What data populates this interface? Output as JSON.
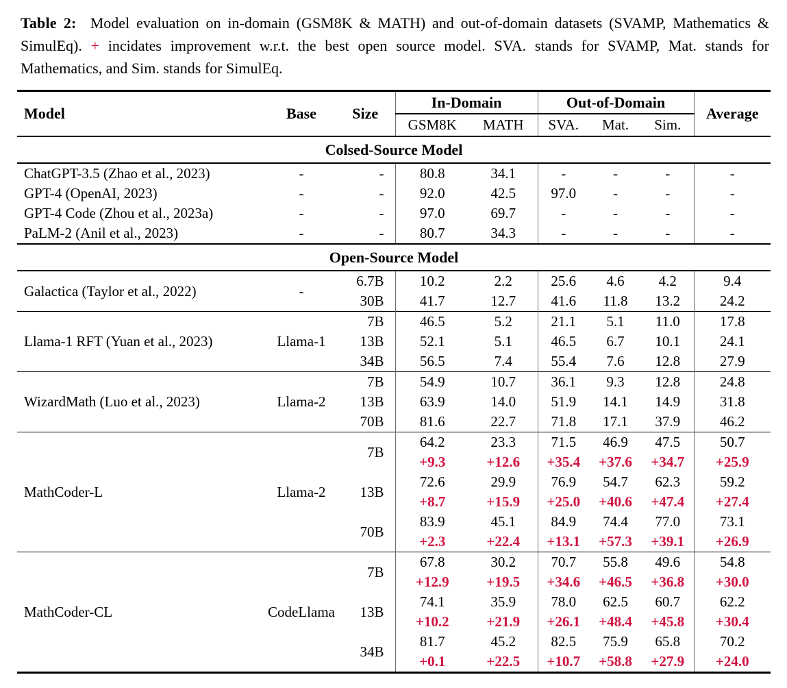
{
  "caption": {
    "label": "Table 2:",
    "before_plus": "Model evaluation on in-domain (GSM8K & MATH) and out-of-domain datasets (SVAMP, Mathematics & SimulEq). ",
    "plus": "+",
    "after_plus": " incidates improvement w.r.t. the best open source model. SVA. stands for SVAMP, Mat. stands for Mathematics, and Sim. stands for SimulEq."
  },
  "colors": {
    "accent_red": "#d2113f",
    "text": "#000000",
    "background": "#ffffff"
  },
  "table": {
    "header": {
      "model": "Model",
      "base": "Base",
      "size": "Size",
      "in_domain": "In-Domain",
      "out_domain": "Out-of-Domain",
      "average": "Average",
      "sub_columns": [
        "GSM8K",
        "MATH",
        "SVA.",
        "Mat.",
        "Sim."
      ]
    },
    "sections": [
      {
        "title": "Colsed-Source Model",
        "groups": [
          {
            "model": "ChatGPT-3.5 (Zhao et al., 2023)",
            "base": "-",
            "rows": [
              {
                "size": "-",
                "values": [
                  "80.8",
                  "34.1",
                  "-",
                  "-",
                  "-",
                  "-"
                ]
              }
            ]
          },
          {
            "model": "GPT-4 (OpenAI, 2023)",
            "base": "-",
            "rows": [
              {
                "size": "-",
                "values": [
                  "92.0",
                  "42.5",
                  "97.0",
                  "-",
                  "-",
                  "-"
                ]
              }
            ]
          },
          {
            "model": "GPT-4 Code (Zhou et al., 2023a)",
            "base": "-",
            "rows": [
              {
                "size": "-",
                "values": [
                  "97.0",
                  "69.7",
                  "-",
                  "-",
                  "-",
                  "-"
                ]
              }
            ]
          },
          {
            "model": "PaLM-2 (Anil et al., 2023)",
            "base": "-",
            "rows": [
              {
                "size": "-",
                "values": [
                  "80.7",
                  "34.3",
                  "-",
                  "-",
                  "-",
                  "-"
                ]
              }
            ]
          }
        ]
      },
      {
        "title": "Open-Source Model",
        "groups": [
          {
            "model": "Galactica (Taylor et al., 2022)",
            "base": "-",
            "rows": [
              {
                "size": "6.7B",
                "values": [
                  "10.2",
                  "2.2",
                  "25.6",
                  "4.6",
                  "4.2",
                  "9.4"
                ]
              },
              {
                "size": "30B",
                "values": [
                  "41.7",
                  "12.7",
                  "41.6",
                  "11.8",
                  "13.2",
                  "24.2"
                ]
              }
            ]
          },
          {
            "model": "Llama-1 RFT (Yuan et al., 2023)",
            "base": "Llama-1",
            "rows": [
              {
                "size": "7B",
                "values": [
                  "46.5",
                  "5.2",
                  "21.1",
                  "5.1",
                  "11.0",
                  "17.8"
                ]
              },
              {
                "size": "13B",
                "values": [
                  "52.1",
                  "5.1",
                  "46.5",
                  "6.7",
                  "10.1",
                  "24.1"
                ]
              },
              {
                "size": "34B",
                "values": [
                  "56.5",
                  "7.4",
                  "55.4",
                  "7.6",
                  "12.8",
                  "27.9"
                ]
              }
            ]
          },
          {
            "model": "WizardMath (Luo et al., 2023)",
            "base": "Llama-2",
            "rows": [
              {
                "size": "7B",
                "values": [
                  "54.9",
                  "10.7",
                  "36.1",
                  "9.3",
                  "12.8",
                  "24.8"
                ]
              },
              {
                "size": "13B",
                "values": [
                  "63.9",
                  "14.0",
                  "51.9",
                  "14.1",
                  "14.9",
                  "31.8"
                ]
              },
              {
                "size": "70B",
                "values": [
                  "81.6",
                  "22.7",
                  "71.8",
                  "17.1",
                  "37.9",
                  "46.2"
                ]
              }
            ]
          },
          {
            "model": "MathCoder-L",
            "base": "Llama-2",
            "rows": [
              {
                "size": "7B",
                "values": [
                  "64.2",
                  "23.3",
                  "71.5",
                  "46.9",
                  "47.5",
                  "50.7"
                ],
                "deltas": [
                  "+9.3",
                  "+12.6",
                  "+35.4",
                  "+37.6",
                  "+34.7",
                  "+25.9"
                ]
              },
              {
                "size": "13B",
                "values": [
                  "72.6",
                  "29.9",
                  "76.9",
                  "54.7",
                  "62.3",
                  "59.2"
                ],
                "deltas": [
                  "+8.7",
                  "+15.9",
                  "+25.0",
                  "+40.6",
                  "+47.4",
                  "+27.4"
                ]
              },
              {
                "size": "70B",
                "values": [
                  "83.9",
                  "45.1",
                  "84.9",
                  "74.4",
                  "77.0",
                  "73.1"
                ],
                "deltas": [
                  "+2.3",
                  "+22.4",
                  "+13.1",
                  "+57.3",
                  "+39.1",
                  "+26.9"
                ]
              }
            ]
          },
          {
            "model": "MathCoder-CL",
            "base": "CodeLlama",
            "rows": [
              {
                "size": "7B",
                "values": [
                  "67.8",
                  "30.2",
                  "70.7",
                  "55.8",
                  "49.6",
                  "54.8"
                ],
                "deltas": [
                  "+12.9",
                  "+19.5",
                  "+34.6",
                  "+46.5",
                  "+36.8",
                  "+30.0"
                ]
              },
              {
                "size": "13B",
                "values": [
                  "74.1",
                  "35.9",
                  "78.0",
                  "62.5",
                  "60.7",
                  "62.2"
                ],
                "deltas": [
                  "+10.2",
                  "+21.9",
                  "+26.1",
                  "+48.4",
                  "+45.8",
                  "+30.4"
                ]
              },
              {
                "size": "34B",
                "values": [
                  "81.7",
                  "45.2",
                  "82.5",
                  "75.9",
                  "65.8",
                  "70.2"
                ],
                "deltas": [
                  "+0.1",
                  "+22.5",
                  "+10.7",
                  "+58.8",
                  "+27.9",
                  "+24.0"
                ]
              }
            ]
          }
        ]
      }
    ]
  }
}
